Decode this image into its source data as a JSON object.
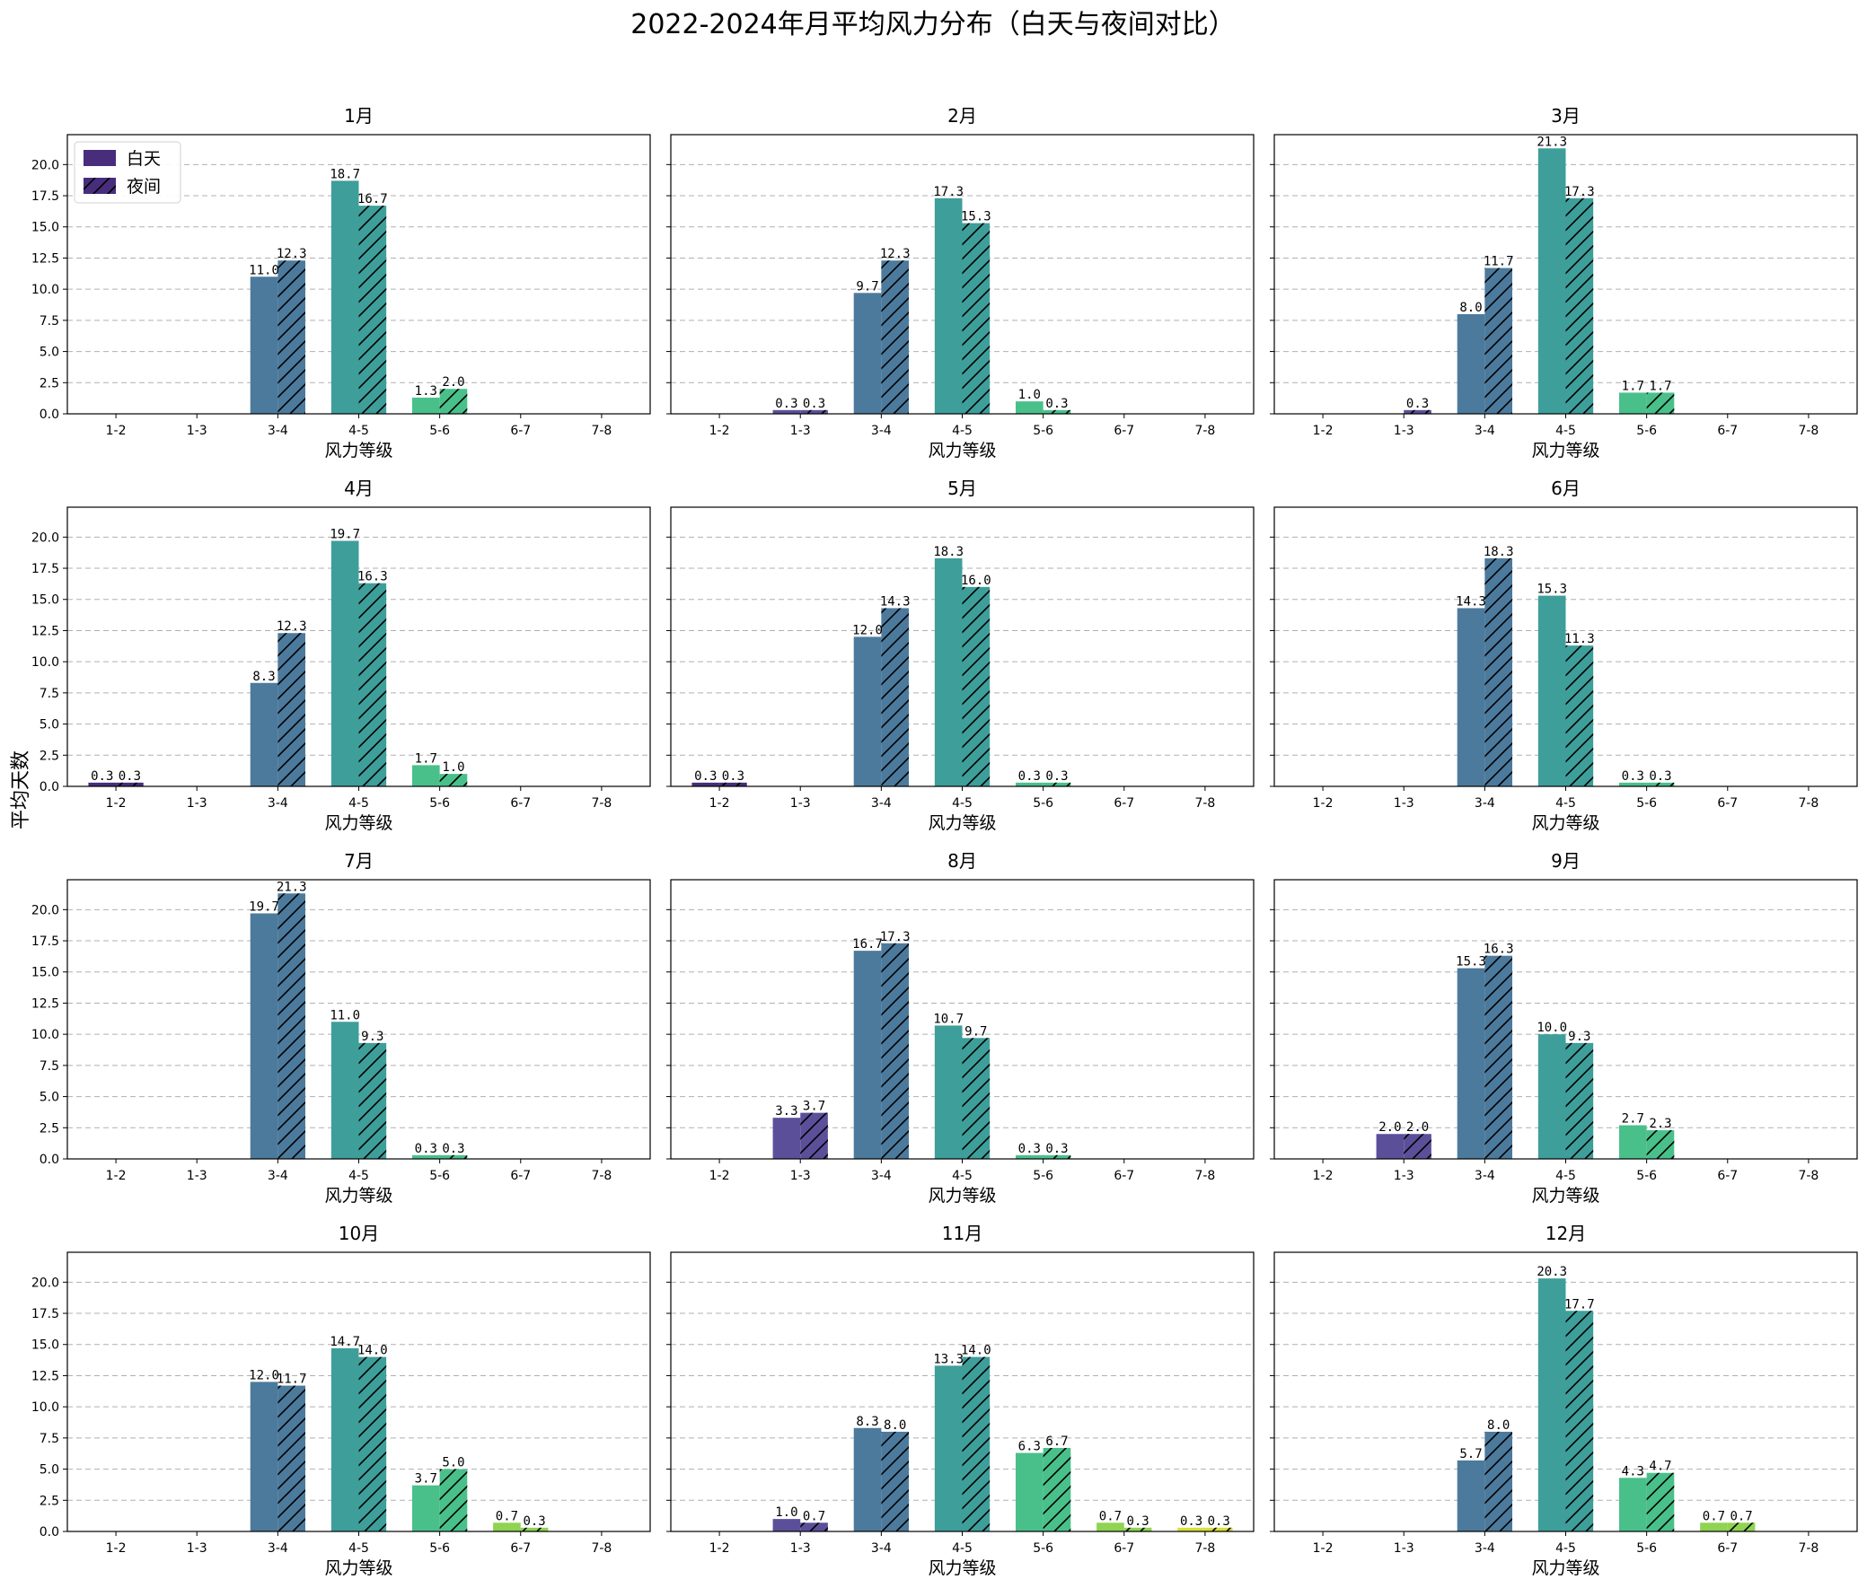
{
  "figure": {
    "title": "2022-2024年月平均风力分布（白天与夜间对比）",
    "ylabel": "平均天数",
    "xlabel": "风力等级"
  },
  "legend": {
    "day_label": "白天",
    "night_label": "夜间",
    "placement": "upper-left of first subplot"
  },
  "colors": {
    "category_colors": [
      "#482173",
      "#433e85",
      "#38598c",
      "#2d708e",
      "#1fa187",
      "#51c56a",
      "#addc30"
    ],
    "categories_used": [
      "#472d7b",
      "#5c4f9a",
      "#4c7a9c",
      "#3e9e9a",
      "#49c08a",
      "#8fd352",
      "#d8e03a"
    ],
    "grid": "#b0b0b0",
    "hatch": "#000000"
  },
  "chart_data": {
    "type": "bar",
    "grouped": true,
    "categories": [
      "1-2",
      "1-3",
      "3-4",
      "4-5",
      "5-6",
      "6-7",
      "7-8"
    ],
    "series_names": [
      "白天",
      "夜间"
    ],
    "ylim": [
      0,
      22.4
    ],
    "yticks": [
      "0.0",
      "2.5",
      "5.0",
      "7.5",
      "10.0",
      "12.5",
      "15.0",
      "17.5",
      "20.0"
    ],
    "ytick_values": [
      0,
      2.5,
      5,
      7.5,
      10,
      12.5,
      15,
      17.5,
      20
    ],
    "grid": "y-dashed",
    "subplots": [
      {
        "title": "1月",
        "day": [
          0,
          0,
          11.0,
          18.7,
          1.3,
          0,
          0
        ],
        "night": [
          0,
          0,
          12.3,
          16.7,
          2.0,
          0,
          0
        ]
      },
      {
        "title": "2月",
        "day": [
          0,
          0.3,
          9.7,
          17.3,
          1.0,
          0,
          0
        ],
        "night": [
          0,
          0.3,
          12.3,
          15.3,
          0.3,
          0,
          0
        ]
      },
      {
        "title": "3月",
        "day": [
          0,
          0,
          8.0,
          21.3,
          1.7,
          0,
          0
        ],
        "night": [
          0,
          0.3,
          11.7,
          17.3,
          1.7,
          0,
          0
        ]
      },
      {
        "title": "4月",
        "day": [
          0.3,
          0,
          8.3,
          19.7,
          1.7,
          0,
          0
        ],
        "night": [
          0.3,
          0,
          12.3,
          16.3,
          1.0,
          0,
          0
        ]
      },
      {
        "title": "5月",
        "day": [
          0.3,
          0,
          12.0,
          18.3,
          0.3,
          0,
          0
        ],
        "night": [
          0.3,
          0,
          14.3,
          16.0,
          0.3,
          0,
          0
        ]
      },
      {
        "title": "6月",
        "day": [
          0,
          0,
          14.3,
          15.3,
          0.3,
          0,
          0
        ],
        "night": [
          0,
          0,
          18.3,
          11.3,
          0.3,
          0,
          0
        ]
      },
      {
        "title": "7月",
        "day": [
          0,
          0,
          19.7,
          11.0,
          0.3,
          0,
          0
        ],
        "night": [
          0,
          0,
          21.3,
          9.3,
          0.3,
          0,
          0
        ]
      },
      {
        "title": "8月",
        "day": [
          0,
          3.3,
          16.7,
          10.7,
          0.3,
          0,
          0
        ],
        "night": [
          0,
          3.7,
          17.3,
          9.7,
          0.3,
          0,
          0
        ]
      },
      {
        "title": "9月",
        "day": [
          0,
          2.0,
          15.3,
          10.0,
          2.7,
          0,
          0
        ],
        "night": [
          0,
          2.0,
          16.3,
          9.3,
          2.3,
          0,
          0
        ]
      },
      {
        "title": "10月",
        "day": [
          0,
          0,
          12.0,
          14.7,
          3.7,
          0.7,
          0
        ],
        "night": [
          0,
          0,
          11.7,
          14.0,
          5.0,
          0.3,
          0
        ]
      },
      {
        "title": "11月",
        "day": [
          0,
          1.0,
          8.3,
          13.3,
          6.3,
          0.7,
          0.3
        ],
        "night": [
          0,
          0.7,
          8.0,
          14.0,
          6.7,
          0.3,
          0.3
        ]
      },
      {
        "title": "12月",
        "day": [
          0,
          0,
          5.7,
          20.3,
          4.3,
          0.7,
          0
        ],
        "night": [
          0,
          0,
          8.0,
          17.7,
          4.7,
          0.7,
          0
        ]
      }
    ]
  }
}
